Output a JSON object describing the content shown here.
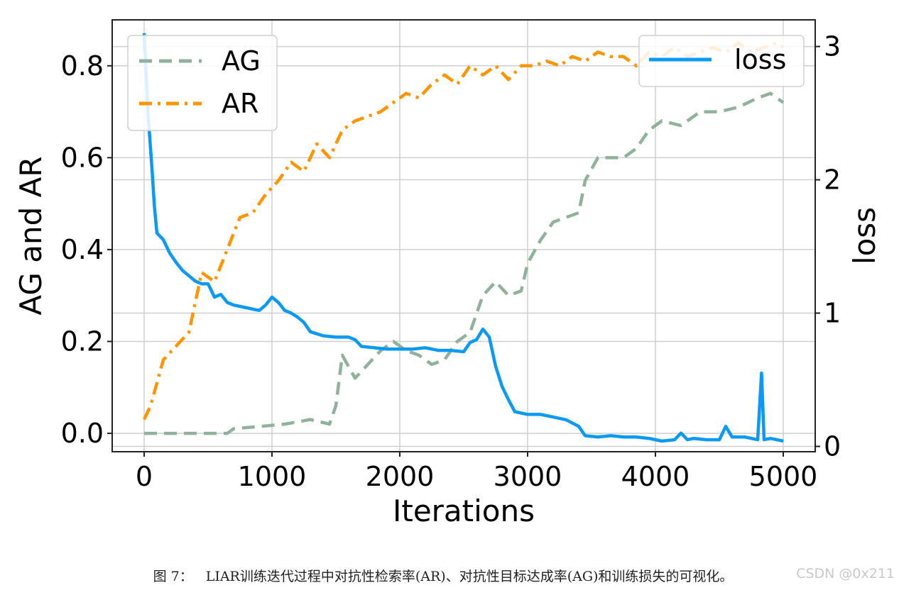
{
  "chart_data": {
    "type": "line",
    "xlabel": "Iterations",
    "ylabel_left": "AG and AR",
    "ylabel_right": "loss",
    "xlim": [
      -250,
      5250
    ],
    "ylim_left": [
      -0.04,
      0.9
    ],
    "ylim_right": [
      -0.04,
      3.2
    ],
    "x_ticks": [
      "0",
      "1000",
      "2000",
      "3000",
      "4000",
      "5000"
    ],
    "y_left_ticks": [
      "0.0",
      "0.2",
      "0.4",
      "0.6",
      "0.8"
    ],
    "y_right_ticks": [
      "0",
      "1",
      "2",
      "3"
    ],
    "grid": true,
    "legend_left": {
      "placement": "top-left",
      "entries": [
        "AG",
        "AR"
      ]
    },
    "legend_right": {
      "placement": "top-right",
      "entries": [
        "loss"
      ]
    },
    "series": [
      {
        "name": "AG",
        "axis": "left",
        "color": "#8fb39a",
        "style": "dashed",
        "points": [
          [
            0,
            0.0
          ],
          [
            200,
            0.0
          ],
          [
            400,
            0.0
          ],
          [
            650,
            0.0
          ],
          [
            700,
            0.01
          ],
          [
            900,
            0.015
          ],
          [
            1100,
            0.02
          ],
          [
            1300,
            0.03
          ],
          [
            1450,
            0.02
          ],
          [
            1500,
            0.06
          ],
          [
            1550,
            0.17
          ],
          [
            1650,
            0.12
          ],
          [
            1750,
            0.15
          ],
          [
            1850,
            0.18
          ],
          [
            1950,
            0.2
          ],
          [
            2050,
            0.18
          ],
          [
            2150,
            0.17
          ],
          [
            2250,
            0.15
          ],
          [
            2350,
            0.16
          ],
          [
            2450,
            0.2
          ],
          [
            2550,
            0.22
          ],
          [
            2650,
            0.3
          ],
          [
            2750,
            0.33
          ],
          [
            2850,
            0.3
          ],
          [
            2950,
            0.31
          ],
          [
            3000,
            0.37
          ],
          [
            3100,
            0.42
          ],
          [
            3200,
            0.46
          ],
          [
            3300,
            0.47
          ],
          [
            3400,
            0.48
          ],
          [
            3450,
            0.55
          ],
          [
            3550,
            0.6
          ],
          [
            3650,
            0.6
          ],
          [
            3750,
            0.6
          ],
          [
            3850,
            0.62
          ],
          [
            3950,
            0.66
          ],
          [
            4050,
            0.68
          ],
          [
            4200,
            0.67
          ],
          [
            4350,
            0.7
          ],
          [
            4500,
            0.7
          ],
          [
            4650,
            0.71
          ],
          [
            4800,
            0.73
          ],
          [
            4900,
            0.74
          ],
          [
            5000,
            0.72
          ]
        ]
      },
      {
        "name": "AR",
        "axis": "left",
        "color": "#ff9500",
        "style": "dashdot",
        "points": [
          [
            0,
            0.03
          ],
          [
            50,
            0.06
          ],
          [
            150,
            0.16
          ],
          [
            250,
            0.19
          ],
          [
            350,
            0.22
          ],
          [
            450,
            0.35
          ],
          [
            550,
            0.33
          ],
          [
            650,
            0.4
          ],
          [
            750,
            0.47
          ],
          [
            850,
            0.48
          ],
          [
            950,
            0.52
          ],
          [
            1050,
            0.55
          ],
          [
            1150,
            0.59
          ],
          [
            1250,
            0.57
          ],
          [
            1350,
            0.63
          ],
          [
            1450,
            0.6
          ],
          [
            1550,
            0.66
          ],
          [
            1650,
            0.68
          ],
          [
            1750,
            0.69
          ],
          [
            1850,
            0.7
          ],
          [
            1950,
            0.72
          ],
          [
            2050,
            0.74
          ],
          [
            2150,
            0.73
          ],
          [
            2250,
            0.76
          ],
          [
            2350,
            0.78
          ],
          [
            2450,
            0.76
          ],
          [
            2550,
            0.8
          ],
          [
            2650,
            0.78
          ],
          [
            2750,
            0.8
          ],
          [
            2850,
            0.77
          ],
          [
            2950,
            0.8
          ],
          [
            3050,
            0.8
          ],
          [
            3150,
            0.81
          ],
          [
            3250,
            0.8
          ],
          [
            3350,
            0.82
          ],
          [
            3450,
            0.81
          ],
          [
            3550,
            0.83
          ],
          [
            3650,
            0.82
          ],
          [
            3750,
            0.82
          ],
          [
            3850,
            0.8
          ],
          [
            3950,
            0.83
          ],
          [
            4050,
            0.82
          ],
          [
            4150,
            0.84
          ],
          [
            4250,
            0.82
          ],
          [
            4350,
            0.83
          ],
          [
            4450,
            0.84
          ],
          [
            4550,
            0.83
          ],
          [
            4650,
            0.85
          ],
          [
            4750,
            0.83
          ],
          [
            4850,
            0.84
          ],
          [
            4950,
            0.85
          ],
          [
            5000,
            0.84
          ]
        ]
      },
      {
        "name": "loss",
        "axis": "right",
        "color": "#0a99f5",
        "style": "solid",
        "points": [
          [
            0,
            3.1
          ],
          [
            30,
            2.5
          ],
          [
            60,
            2.1
          ],
          [
            80,
            1.8
          ],
          [
            100,
            1.6
          ],
          [
            150,
            1.55
          ],
          [
            200,
            1.45
          ],
          [
            250,
            1.38
          ],
          [
            300,
            1.32
          ],
          [
            350,
            1.28
          ],
          [
            400,
            1.24
          ],
          [
            450,
            1.22
          ],
          [
            500,
            1.22
          ],
          [
            550,
            1.12
          ],
          [
            600,
            1.14
          ],
          [
            650,
            1.08
          ],
          [
            700,
            1.06
          ],
          [
            800,
            1.04
          ],
          [
            900,
            1.02
          ],
          [
            950,
            1.06
          ],
          [
            1000,
            1.12
          ],
          [
            1050,
            1.08
          ],
          [
            1100,
            1.02
          ],
          [
            1150,
            1.0
          ],
          [
            1200,
            0.97
          ],
          [
            1250,
            0.93
          ],
          [
            1300,
            0.86
          ],
          [
            1400,
            0.83
          ],
          [
            1500,
            0.82
          ],
          [
            1600,
            0.82
          ],
          [
            1650,
            0.8
          ],
          [
            1700,
            0.75
          ],
          [
            1800,
            0.74
          ],
          [
            1900,
            0.73
          ],
          [
            2000,
            0.73
          ],
          [
            2100,
            0.73
          ],
          [
            2200,
            0.74
          ],
          [
            2300,
            0.72
          ],
          [
            2400,
            0.72
          ],
          [
            2500,
            0.71
          ],
          [
            2550,
            0.78
          ],
          [
            2600,
            0.8
          ],
          [
            2650,
            0.88
          ],
          [
            2700,
            0.82
          ],
          [
            2750,
            0.6
          ],
          [
            2800,
            0.45
          ],
          [
            2850,
            0.35
          ],
          [
            2900,
            0.26
          ],
          [
            3000,
            0.24
          ],
          [
            3100,
            0.24
          ],
          [
            3200,
            0.22
          ],
          [
            3300,
            0.2
          ],
          [
            3400,
            0.15
          ],
          [
            3450,
            0.08
          ],
          [
            3550,
            0.07
          ],
          [
            3650,
            0.08
          ],
          [
            3750,
            0.07
          ],
          [
            3850,
            0.07
          ],
          [
            3950,
            0.06
          ],
          [
            4050,
            0.04
          ],
          [
            4150,
            0.05
          ],
          [
            4200,
            0.1
          ],
          [
            4250,
            0.05
          ],
          [
            4300,
            0.06
          ],
          [
            4400,
            0.05
          ],
          [
            4500,
            0.05
          ],
          [
            4550,
            0.15
          ],
          [
            4600,
            0.07
          ],
          [
            4700,
            0.07
          ],
          [
            4800,
            0.05
          ],
          [
            4830,
            0.55
          ],
          [
            4850,
            0.05
          ],
          [
            4900,
            0.06
          ],
          [
            4950,
            0.05
          ],
          [
            5000,
            0.04
          ]
        ]
      }
    ]
  },
  "caption": {
    "label": "图 7：",
    "text": "LIAR训练迭代过程中对抗性检索率(AR)、对抗性目标达成率(AG)和训练损失的可视化。"
  },
  "watermark": "CSDN @0x211"
}
